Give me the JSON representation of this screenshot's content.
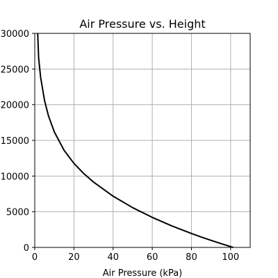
{
  "chart_data": {
    "type": "line",
    "title": "Air Pressure vs. Height",
    "xlabel": "Air Pressure (kPa)",
    "ylabel": "",
    "xlim": [
      0,
      110
    ],
    "ylim": [
      0,
      30000
    ],
    "xticks": [
      0,
      20,
      40,
      60,
      80,
      100
    ],
    "yticks": [
      0,
      5000,
      10000,
      15000,
      20000,
      25000,
      30000
    ],
    "grid": true,
    "legend": "none",
    "line_color": "#000000",
    "grid_color": "#b0b0b0",
    "series": [
      {
        "x": [
          101.3,
          95,
          90,
          85,
          80,
          70,
          60,
          50,
          40,
          30,
          25,
          20,
          15,
          10,
          7,
          5,
          3,
          2,
          1.5
        ],
        "y": [
          0,
          540,
          990,
          1460,
          1950,
          3010,
          4210,
          5570,
          7180,
          9160,
          10360,
          11780,
          13600,
          16180,
          18440,
          20580,
          23850,
          26480,
          30000
        ]
      }
    ]
  }
}
